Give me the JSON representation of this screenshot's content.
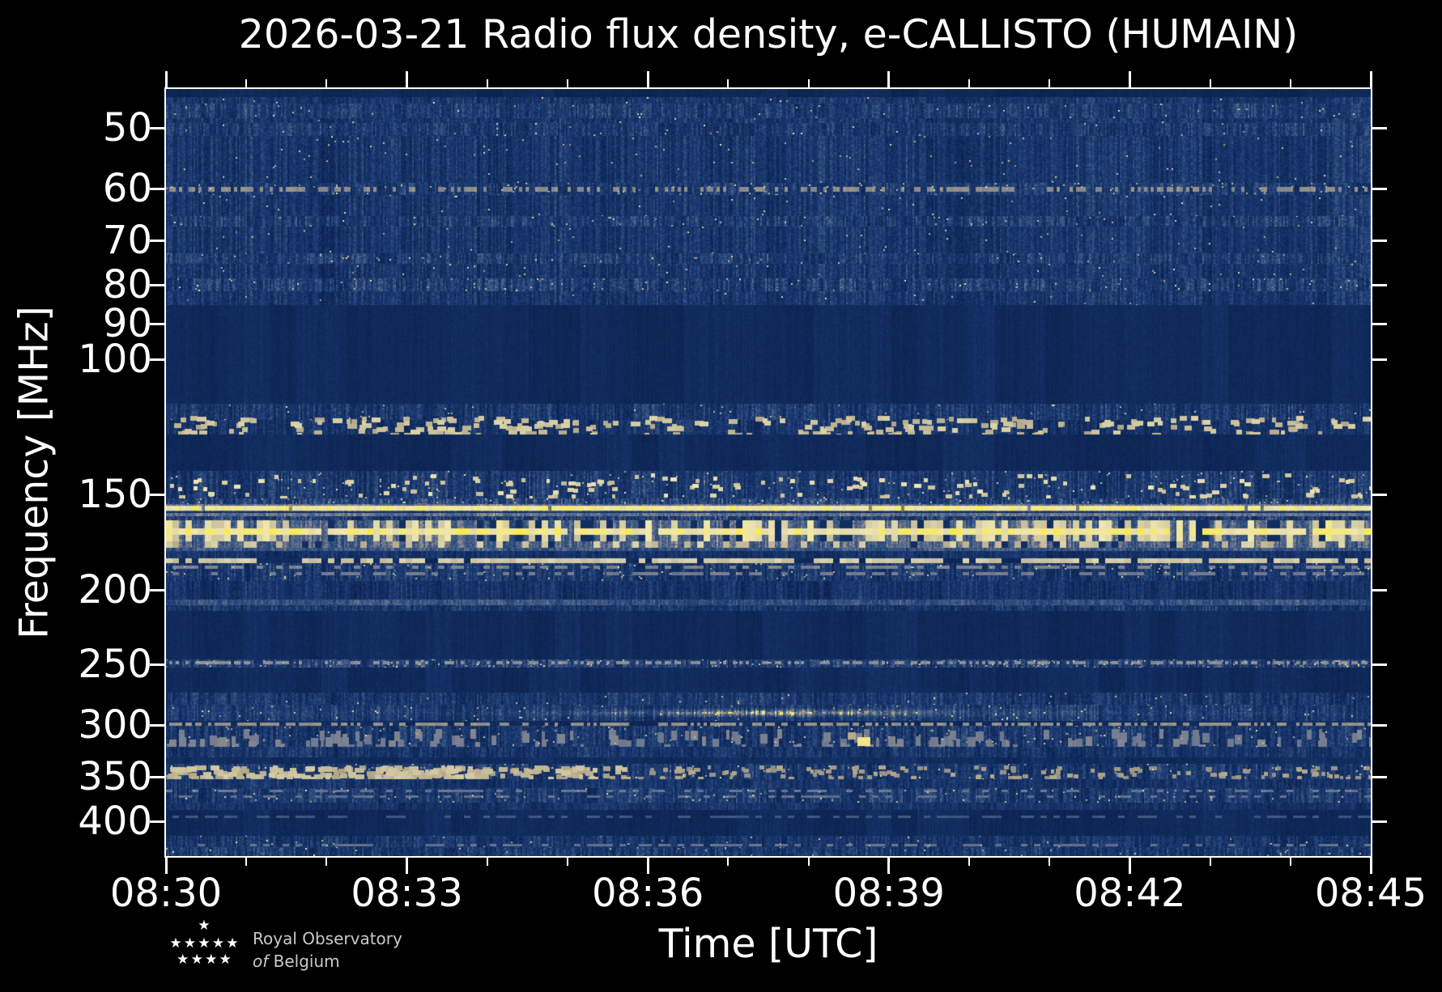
{
  "title": "2026-03-21 Radio flux density, e-CALLISTO (HUMAIN)",
  "footer": {
    "org_line1": "Royal Observatory",
    "org_line2_italic": "of",
    "org_line2": "Belgium",
    "star_rows": [
      1,
      5,
      4
    ]
  },
  "colors": {
    "background": "#000000",
    "text": "#ffffff",
    "spine": "#ffffff",
    "logo_text": "#c9c9c9",
    "star": "#ffffff",
    "bright_rfi_yellow": "#f9ea4f",
    "base_navy": "#16326a"
  },
  "chart_data": {
    "type": "heatmap",
    "subtype": "radio spectrogram",
    "title": "2026-03-21 Radio flux density, e-CALLISTO (HUMAIN)",
    "date": "2026-03-21",
    "network": "e-CALLISTO",
    "station": "HUMAIN",
    "xlabel": "Time [UTC]",
    "ylabel": "Frequency [MHz]",
    "x_range_utc": [
      "08:30",
      "08:45"
    ],
    "x_ticks": [
      "08:30",
      "08:33",
      "08:36",
      "08:39",
      "08:42",
      "08:45"
    ],
    "x_minor_every_min": 1,
    "y_scale": "log",
    "y_range_mhz": [
      44.5,
      444
    ],
    "y_ticks": [
      50,
      60,
      70,
      80,
      90,
      100,
      150,
      200,
      250,
      300,
      350,
      400
    ],
    "grid": false,
    "legend": "none",
    "colormap": [
      [
        0.0,
        "#091f4a"
      ],
      [
        0.14,
        "#0e2857"
      ],
      [
        0.2,
        "#112b5c"
      ],
      [
        0.3,
        "#16336b"
      ],
      [
        0.42,
        "#1f3d72"
      ],
      [
        0.55,
        "#31517f"
      ],
      [
        0.68,
        "#55678b"
      ],
      [
        0.78,
        "#7d8290"
      ],
      [
        0.86,
        "#a99e84"
      ],
      [
        0.93,
        "#d6cda4"
      ],
      [
        0.97,
        "#efe6b0"
      ],
      [
        1.0,
        "#f9ea4f"
      ]
    ],
    "layers": [
      {
        "kind": "noise",
        "f": [
          44.5,
          444
        ],
        "level": 0.18,
        "contrast": 0.035,
        "grain": 0.05,
        "desc": "base background"
      },
      {
        "kind": "noise",
        "f": [
          44.5,
          45.6
        ],
        "level": 0.13,
        "contrast": 0.03,
        "grain": 0.04,
        "desc": "dark top edge row"
      },
      {
        "kind": "noise",
        "f": [
          45.6,
          85
        ],
        "level": 0.33,
        "contrast": 0.15,
        "grain": 0.11,
        "hot": 0.004,
        "desc": "45-85 MHz broadband noise"
      },
      {
        "kind": "noise",
        "f": [
          46.5,
          48.6
        ],
        "level": 0.38,
        "contrast": 0.16,
        "grain": 0.12,
        "hot": 0.006
      },
      {
        "kind": "noise",
        "f": [
          49.3,
          51.2
        ],
        "level": 0.36,
        "contrast": 0.16,
        "grain": 0.12,
        "hot": 0.005
      },
      {
        "kind": "noise",
        "f": [
          59.0,
          61.2
        ],
        "level": 0.37,
        "contrast": 0.16,
        "grain": 0.12,
        "hot": 0.02
      },
      {
        "kind": "dashline",
        "f": [
          59.7,
          60.6
        ],
        "v": 0.84,
        "duty": 0.5,
        "block": 2,
        "desc": "60 MHz dotted RFI line"
      },
      {
        "kind": "noise",
        "f": [
          65.2,
          67.3
        ],
        "level": 0.38,
        "contrast": 0.17,
        "grain": 0.12,
        "hot": 0.008
      },
      {
        "kind": "noise",
        "f": [
          72.8,
          75.2
        ],
        "level": 0.38,
        "contrast": 0.17,
        "grain": 0.12,
        "hot": 0.008
      },
      {
        "kind": "noise",
        "f": [
          78.6,
          81.6
        ],
        "level": 0.4,
        "contrast": 0.18,
        "grain": 0.13,
        "hot": 0.012
      },
      {
        "kind": "noise",
        "f": [
          85,
          114.5
        ],
        "level": 0.175,
        "contrast": 0.035,
        "grain": 0.05,
        "desc": "filtered FM band, dark"
      },
      {
        "kind": "noise",
        "f": [
          114.5,
          120
        ],
        "level": 0.34,
        "contrast": 0.17,
        "grain": 0.12,
        "hot": 0.006
      },
      {
        "kind": "noise",
        "f": [
          120,
          125.5
        ],
        "level": 0.3,
        "contrast": 0.15,
        "grain": 0.11
      },
      {
        "kind": "speckles",
        "f": [
          118.5,
          125
        ],
        "v": 0.94,
        "density": 260,
        "w": [
          5,
          12
        ],
        "h": 6,
        "desc": "airband voice bursts"
      },
      {
        "kind": "noise",
        "f": [
          125.5,
          140
        ],
        "level": 0.175,
        "contrast": 0.035,
        "grain": 0.05
      },
      {
        "kind": "noise",
        "f": [
          140,
          152
        ],
        "level": 0.35,
        "contrast": 0.17,
        "grain": 0.12,
        "hot": 0.01
      },
      {
        "kind": "speckles",
        "f": [
          141,
          151
        ],
        "v": 0.97,
        "density": 150,
        "w": [
          4,
          9
        ],
        "h": 5,
        "desc": "2m band bursts"
      },
      {
        "kind": "noise",
        "f": [
          152,
          154.6
        ],
        "level": 0.45,
        "contrast": 0.2,
        "grain": 0.13,
        "hot": 0.02
      },
      {
        "kind": "noise",
        "f": [
          154.6,
          160.2
        ],
        "level": 0.72,
        "contrast": 0.08,
        "grain": 0.06,
        "desc": "halo around 156 MHz carrier"
      },
      {
        "kind": "dashline",
        "f": [
          155.4,
          157.6
        ],
        "v": 1.0,
        "duty": 0.985,
        "block": 2,
        "desc": "solid 156 MHz carrier"
      },
      {
        "kind": "noise",
        "f": [
          157.8,
          158.6
        ],
        "level": 0.3,
        "contrast": 0.1,
        "grain": 0.06,
        "desc": "dark notch under carrier"
      },
      {
        "kind": "noise",
        "f": [
          160.2,
          162.3
        ],
        "level": 0.38,
        "contrast": 0.22,
        "grain": 0.14
      },
      {
        "kind": "noise",
        "f": [
          162.3,
          176
        ],
        "level": 0.64,
        "contrast": 0.13,
        "grain": 0.09,
        "desc": "gray base 162-176 MHz"
      },
      {
        "kind": "stripes",
        "f": [
          162.3,
          172.6
        ],
        "cover": 0.52,
        "v": 0.98,
        "block": 3,
        "darkgap": 0.15,
        "desc": "dense yellow RFI stripes 162-173 MHz"
      },
      {
        "kind": "dashline",
        "f": [
          166.2,
          169.3
        ],
        "v": 1.0,
        "duty": 0.94,
        "block": 3,
        "desc": "continuous bright core ~167 MHz"
      },
      {
        "kind": "stripes",
        "f": [
          172.6,
          176
        ],
        "cover": 0.3,
        "v": 0.95,
        "block": 3,
        "darkgap": 0.1
      },
      {
        "kind": "noise",
        "f": [
          176,
          177.8
        ],
        "level": 0.58,
        "contrast": 0.1,
        "grain": 0.07,
        "desc": "gray fade band"
      },
      {
        "kind": "noise",
        "f": [
          177.8,
          181.8
        ],
        "level": 0.28,
        "contrast": 0.12,
        "grain": 0.09
      },
      {
        "kind": "dashline",
        "f": [
          181.8,
          184.4
        ],
        "v": 0.95,
        "duty": 0.78,
        "block": 3,
        "desc": "183 MHz dashed carrier"
      },
      {
        "kind": "noise",
        "f": [
          184.4,
          194.5
        ],
        "level": 0.34,
        "contrast": 0.18,
        "grain": 0.12,
        "hot": 0.012
      },
      {
        "kind": "dashline",
        "f": [
          186,
          187.6
        ],
        "v": 0.8,
        "duty": 0.45,
        "block": 3
      },
      {
        "kind": "dashline",
        "f": [
          189.5,
          191.3
        ],
        "v": 0.78,
        "duty": 0.4,
        "block": 3
      },
      {
        "kind": "noise",
        "f": [
          194.5,
          205.5
        ],
        "level": 0.28,
        "contrast": 0.14,
        "grain": 0.1
      },
      {
        "kind": "noise",
        "f": [
          205.5,
          209.5
        ],
        "level": 0.55,
        "contrast": 0.1,
        "grain": 0.08,
        "desc": "slate band ~207 MHz"
      },
      {
        "kind": "noise",
        "f": [
          209.5,
          213
        ],
        "level": 0.34,
        "contrast": 0.16,
        "grain": 0.11
      },
      {
        "kind": "noise",
        "f": [
          213,
          246
        ],
        "level": 0.175,
        "contrast": 0.035,
        "grain": 0.05,
        "desc": "dark 213-246 MHz"
      },
      {
        "kind": "noise",
        "f": [
          246,
          252.5
        ],
        "level": 0.42,
        "contrast": 0.2,
        "grain": 0.13,
        "hot": 0.03
      },
      {
        "kind": "dashline",
        "f": [
          247.5,
          250
        ],
        "v": 0.84,
        "duty": 0.5,
        "block": 2,
        "desc": "250 MHz dotted RFI"
      },
      {
        "kind": "noise",
        "f": [
          252.5,
          272
        ],
        "level": 0.185,
        "contrast": 0.04,
        "grain": 0.05
      },
      {
        "kind": "noise",
        "f": [
          272,
          282
        ],
        "level": 0.33,
        "contrast": 0.16,
        "grain": 0.11,
        "hot": 0.006
      },
      {
        "kind": "noise",
        "f": [
          282,
          296
        ],
        "level": 0.36,
        "contrast": 0.16,
        "grain": 0.11,
        "hot": 0.01
      },
      {
        "kind": "glow",
        "f": [
          284,
          293
        ],
        "cx": 0.5,
        "sx": 0.09,
        "amp": 0.42,
        "desc": "diffuse brightening ~290 MHz near 08:37"
      },
      {
        "kind": "glow",
        "f": [
          284,
          293
        ],
        "cx": 0.5,
        "sx": 0.35,
        "amp": 0.1
      },
      {
        "kind": "dashline",
        "f": [
          297.5,
          300.5
        ],
        "v": 0.85,
        "duty": 0.55,
        "block": 2,
        "desc": "300 MHz dotted RFI"
      },
      {
        "kind": "noise",
        "f": [
          300.5,
          320
        ],
        "level": 0.34,
        "contrast": 0.17,
        "grain": 0.12,
        "hot": 0.01
      },
      {
        "kind": "speckles",
        "f": [
          303,
          318
        ],
        "v": 0.8,
        "density": 170,
        "w": [
          4,
          10
        ],
        "h": 12,
        "desc": "tan dashes 305-318 MHz"
      },
      {
        "kind": "blob",
        "x": 0.569,
        "f": [
          306,
          313
        ],
        "w": 10,
        "v": 0.9
      },
      {
        "kind": "blob",
        "x": 0.579,
        "f": [
          311,
          319
        ],
        "w": 16,
        "v": 1.0,
        "desc": "bright burst ~08:38.7, ~315 MHz"
      },
      {
        "kind": "noise",
        "f": [
          320,
          330
        ],
        "level": 0.3,
        "contrast": 0.15,
        "grain": 0.11
      },
      {
        "kind": "noise",
        "f": [
          330,
          336.5
        ],
        "level": 0.2,
        "contrast": 0.05,
        "grain": 0.06
      },
      {
        "kind": "noise",
        "f": [
          336.5,
          352.5
        ],
        "level": 0.33,
        "contrast": 0.17,
        "grain": 0.12,
        "hot": 0.01
      },
      {
        "kind": "speckles",
        "f": [
          338,
          350
        ],
        "v": 0.93,
        "density": 260,
        "w": [
          5,
          12
        ],
        "h": 6,
        "x": [
          0,
          0.38
        ],
        "desc": "dash cluster 340-350 MHz, denser before 08:36"
      },
      {
        "kind": "speckles",
        "f": [
          338,
          350
        ],
        "v": 0.88,
        "density": 150,
        "w": [
          4,
          9
        ],
        "h": 5,
        "x": [
          0.38,
          1
        ]
      },
      {
        "kind": "noise",
        "f": [
          352.5,
          362
        ],
        "level": 0.3,
        "contrast": 0.14,
        "grain": 0.1
      },
      {
        "kind": "noise",
        "f": [
          362,
          378
        ],
        "level": 0.36,
        "contrast": 0.17,
        "grain": 0.12,
        "hot": 0.012
      },
      {
        "kind": "dashline",
        "f": [
          364,
          366.5
        ],
        "v": 0.76,
        "duty": 0.4,
        "block": 3
      },
      {
        "kind": "dashline",
        "f": [
          370,
          373
        ],
        "v": 0.74,
        "duty": 0.38,
        "block": 3
      },
      {
        "kind": "noise",
        "f": [
          378,
          387
        ],
        "level": 0.28,
        "contrast": 0.12,
        "grain": 0.09
      },
      {
        "kind": "noise",
        "f": [
          387,
          418
        ],
        "level": 0.18,
        "contrast": 0.04,
        "grain": 0.05,
        "desc": "dark 387-418 MHz"
      },
      {
        "kind": "dashline",
        "f": [
          393.5,
          396
        ],
        "v": 0.62,
        "duty": 0.5,
        "block": 3,
        "desc": "faint 395 MHz line"
      },
      {
        "kind": "noise",
        "f": [
          418,
          432
        ],
        "level": 0.33,
        "contrast": 0.16,
        "grain": 0.11,
        "hot": 0.008
      },
      {
        "kind": "dashline",
        "f": [
          428,
          431
        ],
        "v": 0.75,
        "duty": 0.45,
        "block": 3
      },
      {
        "kind": "noise",
        "f": [
          432,
          444
        ],
        "level": 0.36,
        "contrast": 0.18,
        "grain": 0.13,
        "hot": 0.012
      }
    ]
  }
}
